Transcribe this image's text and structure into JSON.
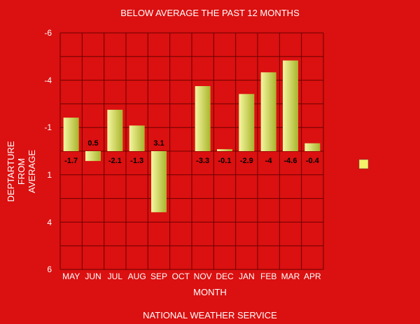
{
  "chart_data": {
    "type": "bar",
    "title": "BELOW AVERAGE THE PAST 12 MONTHS",
    "xlabel": "MONTH",
    "ylabel_lines": [
      "DEPTARTURE",
      "FROM",
      "AVERAGE"
    ],
    "footer": "NATIONAL WEATHER SERVICE",
    "categories": [
      "MAY",
      "JUN",
      "JUL",
      "AUG",
      "SEP",
      "OCT",
      "NOV",
      "DEC",
      "JAN",
      "FEB",
      "MAR",
      "APR"
    ],
    "values": [
      -1.7,
      0.5,
      -2.1,
      -1.3,
      3.1,
      null,
      -3.3,
      -0.1,
      -2.9,
      -4,
      -4.6,
      -0.4
    ],
    "value_labels": [
      "-1.7",
      "0.5",
      "-2.1",
      "-1.3",
      "3.1",
      "",
      "-3.3",
      "-0.1",
      "-2.9",
      "-4",
      "-4.6",
      "-0.4"
    ],
    "y_tick_labels": [
      "-6",
      "-4",
      "-1",
      "1",
      "4",
      "6"
    ],
    "ylim": [
      -6,
      6
    ],
    "y_inverted": true,
    "grid": true,
    "legend_position": "right",
    "colors": {
      "background": "#db1010",
      "bar_light": "#f6f7a0",
      "bar_dark": "#a8b42c",
      "grid": "#6b0000",
      "legend_swatch": "#f5f06a"
    }
  }
}
